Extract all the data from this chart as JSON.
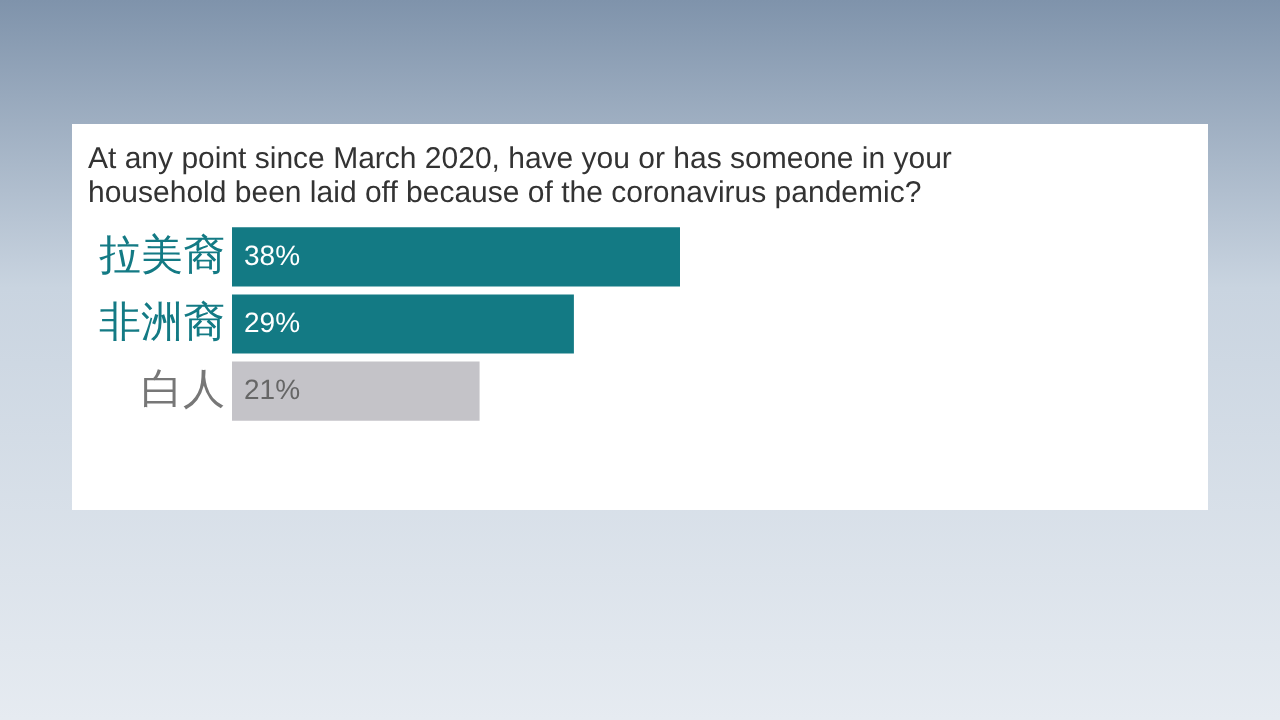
{
  "chart_data": {
    "type": "bar",
    "orientation": "horizontal",
    "title": "At any point since March 2020, have you or has someone in your household been laid off because of the coronavirus pandemic?",
    "categories": [
      "拉美裔",
      "非洲裔",
      "白人"
    ],
    "values": [
      38,
      29,
      21
    ],
    "colors": [
      "#137a84",
      "#137a84",
      "#c4c3c8"
    ],
    "value_labels": [
      "38%",
      "29%",
      "21%"
    ]
  }
}
